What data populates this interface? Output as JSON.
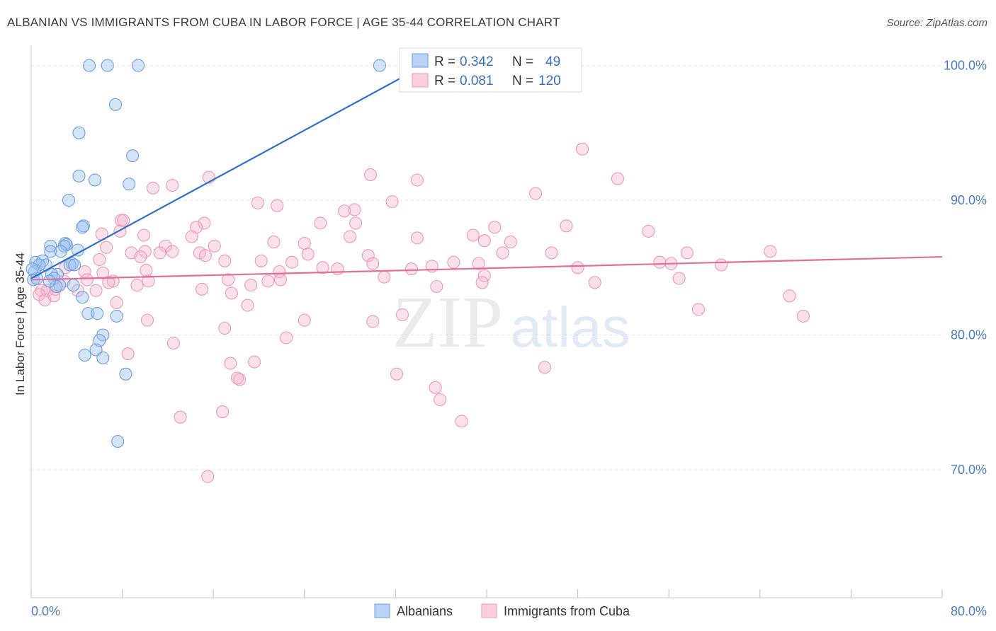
{
  "title": "ALBANIAN VS IMMIGRANTS FROM CUBA IN LABOR FORCE | AGE 35-44 CORRELATION CHART",
  "source": "Source: ZipAtlas.com",
  "watermark": {
    "zip": "ZIP",
    "atlas": "atlas"
  },
  "legend_top": [
    {
      "r_label": "R =",
      "r_value": "0.342",
      "n_label": "N =",
      "n_value": "49"
    },
    {
      "r_label": "R =",
      "r_value": "0.081",
      "n_label": "N =",
      "n_value": "120"
    }
  ],
  "chart_data": {
    "type": "scatter",
    "title": "ALBANIAN VS IMMIGRANTS FROM CUBA IN LABOR FORCE | AGE 35-44 CORRELATION CHART",
    "xlabel": "",
    "ylabel": "In Labor Force | Age 35-44",
    "xlim": [
      0,
      80
    ],
    "ylim": [
      60.5,
      101.5
    ],
    "x_tick_labels": [
      "0.0%",
      "80.0%"
    ],
    "y_ticks": [
      70,
      80,
      90,
      100
    ],
    "y_tick_labels": [
      "70.0%",
      "80.0%",
      "90.0%",
      "100.0%"
    ],
    "grid": true,
    "legend_position": "top-center",
    "colors": {
      "albanians": "#7aaaea",
      "albanians_line": "#2f6fcc",
      "cuba": "#f4a6c0",
      "cuba_line": "#e0709a",
      "axis_text": "#4a7cc7"
    },
    "series": [
      {
        "name": "Albanians",
        "r": 0.342,
        "n": 49,
        "trend": {
          "x": [
            0.0,
            34.5
          ],
          "y": [
            84.2,
            100.0
          ]
        },
        "points": [
          [
            5.1,
            100.0
          ],
          [
            6.7,
            100.0
          ],
          [
            9.4,
            100.0
          ],
          [
            30.6,
            100.0
          ],
          [
            7.4,
            97.1
          ],
          [
            4.2,
            95.0
          ],
          [
            8.9,
            93.3
          ],
          [
            4.2,
            91.8
          ],
          [
            5.6,
            91.5
          ],
          [
            8.6,
            91.2
          ],
          [
            3.3,
            90.0
          ],
          [
            4.6,
            88.1
          ],
          [
            4.5,
            88.0
          ],
          [
            3.0,
            86.8
          ],
          [
            3.1,
            86.7
          ],
          [
            1.7,
            86.6
          ],
          [
            2.9,
            86.6
          ],
          [
            1.7,
            86.2
          ],
          [
            4.1,
            86.3
          ],
          [
            0.4,
            85.4
          ],
          [
            1.0,
            85.5
          ],
          [
            1.3,
            85.2
          ],
          [
            0.7,
            85.2
          ],
          [
            3.6,
            85.3
          ],
          [
            3.4,
            85.2
          ],
          [
            3.8,
            85.2
          ],
          [
            0.3,
            84.7
          ],
          [
            2.3,
            84.5
          ],
          [
            1.8,
            84.5
          ],
          [
            2.0,
            84.2
          ],
          [
            0.2,
            84.1
          ],
          [
            0.5,
            84.2
          ],
          [
            2.5,
            83.7
          ],
          [
            2.2,
            83.6
          ],
          [
            3.7,
            83.7
          ],
          [
            4.5,
            82.8
          ],
          [
            5.0,
            81.6
          ],
          [
            5.8,
            81.6
          ],
          [
            7.5,
            81.4
          ],
          [
            6.3,
            80.0
          ],
          [
            6.0,
            79.6
          ],
          [
            5.7,
            78.9
          ],
          [
            4.7,
            78.5
          ],
          [
            6.3,
            78.3
          ],
          [
            8.3,
            77.1
          ],
          [
            7.6,
            72.1
          ],
          [
            0.1,
            84.9
          ],
          [
            1.6,
            84.0
          ],
          [
            2.6,
            86.2
          ]
        ]
      },
      {
        "name": "Immigrants from Cuba",
        "r": 0.081,
        "n": 120,
        "trend": {
          "x": [
            0.0,
            80.0
          ],
          "y": [
            84.1,
            85.8
          ]
        },
        "points": [
          [
            48.4,
            93.8
          ],
          [
            29.8,
            91.9
          ],
          [
            15.6,
            91.7
          ],
          [
            33.9,
            91.5
          ],
          [
            51.5,
            91.6
          ],
          [
            12.4,
            91.1
          ],
          [
            10.7,
            90.9
          ],
          [
            44.3,
            90.5
          ],
          [
            31.7,
            89.9
          ],
          [
            19.9,
            89.8
          ],
          [
            21.6,
            89.6
          ],
          [
            27.5,
            89.2
          ],
          [
            28.4,
            89.3
          ],
          [
            7.9,
            88.5
          ],
          [
            8.1,
            88.5
          ],
          [
            15.2,
            88.3
          ],
          [
            14.5,
            88.0
          ],
          [
            25.4,
            88.3
          ],
          [
            28.5,
            88.3
          ],
          [
            40.7,
            88.0
          ],
          [
            54.2,
            87.7
          ],
          [
            47.0,
            88.1
          ],
          [
            6.2,
            87.5
          ],
          [
            7.8,
            87.7
          ],
          [
            9.9,
            87.4
          ],
          [
            14.1,
            87.3
          ],
          [
            28.0,
            87.3
          ],
          [
            33.9,
            87.2
          ],
          [
            38.8,
            87.4
          ],
          [
            39.8,
            87.0
          ],
          [
            42.1,
            86.9
          ],
          [
            21.3,
            86.9
          ],
          [
            24.0,
            86.8
          ],
          [
            16.1,
            86.6
          ],
          [
            11.8,
            86.6
          ],
          [
            12.4,
            86.2
          ],
          [
            11.3,
            86.1
          ],
          [
            10.0,
            86.2
          ],
          [
            8.8,
            86.1
          ],
          [
            6.6,
            86.5
          ],
          [
            14.8,
            86.1
          ],
          [
            24.3,
            86.0
          ],
          [
            29.6,
            85.9
          ],
          [
            41.4,
            86.1
          ],
          [
            45.7,
            86.1
          ],
          [
            57.6,
            86.1
          ],
          [
            9.6,
            85.8
          ],
          [
            6.0,
            85.6
          ],
          [
            15.3,
            85.9
          ],
          [
            17.0,
            85.5
          ],
          [
            20.2,
            85.5
          ],
          [
            22.9,
            85.4
          ],
          [
            30.0,
            85.3
          ],
          [
            35.2,
            85.1
          ],
          [
            37.1,
            85.4
          ],
          [
            39.3,
            85.3
          ],
          [
            48.0,
            85.0
          ],
          [
            56.2,
            85.3
          ],
          [
            55.2,
            85.4
          ],
          [
            60.6,
            85.2
          ],
          [
            25.6,
            85.0
          ],
          [
            26.9,
            84.9
          ],
          [
            33.4,
            84.9
          ],
          [
            3.0,
            85.0
          ],
          [
            4.7,
            84.7
          ],
          [
            6.3,
            84.6
          ],
          [
            10.1,
            84.8
          ],
          [
            21.8,
            84.7
          ],
          [
            31.0,
            84.3
          ],
          [
            39.8,
            84.4
          ],
          [
            2.9,
            84.0
          ],
          [
            4.9,
            84.1
          ],
          [
            7.2,
            84.0
          ],
          [
            10.3,
            84.0
          ],
          [
            17.3,
            84.1
          ],
          [
            20.8,
            84.0
          ],
          [
            21.9,
            84.1
          ],
          [
            19.3,
            83.7
          ],
          [
            35.6,
            83.6
          ],
          [
            39.6,
            83.9
          ],
          [
            49.5,
            83.9
          ],
          [
            56.9,
            84.2
          ],
          [
            0.9,
            83.3
          ],
          [
            1.4,
            83.3
          ],
          [
            2.1,
            83.4
          ],
          [
            4.1,
            83.3
          ],
          [
            5.7,
            83.3
          ],
          [
            6.8,
            83.9
          ],
          [
            9.3,
            83.7
          ],
          [
            15.0,
            83.4
          ],
          [
            17.6,
            83.1
          ],
          [
            0.7,
            83.0
          ],
          [
            1.2,
            82.6
          ],
          [
            2.0,
            82.9
          ],
          [
            7.5,
            82.4
          ],
          [
            19.0,
            82.2
          ],
          [
            58.6,
            81.9
          ],
          [
            67.8,
            81.4
          ],
          [
            66.6,
            82.9
          ],
          [
            32.6,
            81.5
          ],
          [
            30.0,
            81.0
          ],
          [
            24.0,
            81.1
          ],
          [
            10.2,
            81.1
          ],
          [
            17.0,
            80.5
          ],
          [
            22.4,
            79.8
          ],
          [
            12.5,
            79.4
          ],
          [
            8.5,
            78.6
          ],
          [
            17.5,
            77.9
          ],
          [
            19.6,
            78.0
          ],
          [
            45.1,
            77.6
          ],
          [
            32.1,
            77.1
          ],
          [
            18.3,
            76.7
          ],
          [
            18.1,
            76.8
          ],
          [
            35.5,
            76.1
          ],
          [
            35.9,
            75.2
          ],
          [
            16.8,
            74.3
          ],
          [
            37.8,
            73.6
          ],
          [
            13.1,
            73.9
          ],
          [
            15.5,
            69.5
          ],
          [
            64.9,
            86.2
          ]
        ]
      }
    ]
  },
  "bottom_legend": [
    "Albanians",
    "Immigrants from Cuba"
  ]
}
